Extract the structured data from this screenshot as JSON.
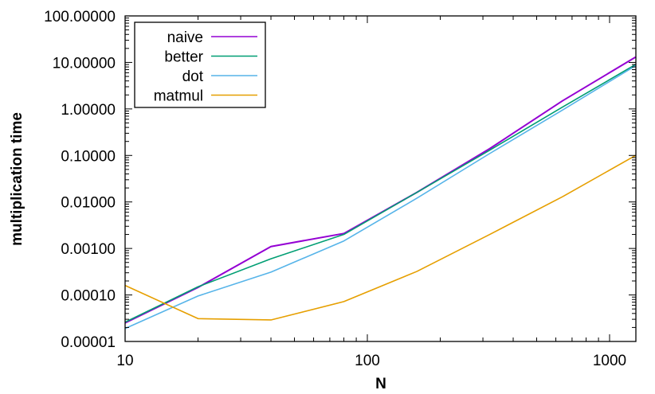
{
  "chart_data": {
    "type": "line",
    "title": "",
    "xlabel": "N",
    "ylabel": "multiplication time",
    "xscale": "log",
    "yscale": "log",
    "xlim": [
      10,
      1280
    ],
    "ylim": [
      1e-05,
      100
    ],
    "grid": false,
    "legend_position": "top-left",
    "x_ticks": [
      {
        "value": 10,
        "label": "10"
      },
      {
        "value": 100,
        "label": "100"
      },
      {
        "value": 1000,
        "label": "1000"
      }
    ],
    "y_ticks": [
      {
        "value": 1e-05,
        "label": "0.00001"
      },
      {
        "value": 0.0001,
        "label": "0.00010"
      },
      {
        "value": 0.001,
        "label": "0.00100"
      },
      {
        "value": 0.01,
        "label": "0.01000"
      },
      {
        "value": 0.1,
        "label": "0.10000"
      },
      {
        "value": 1,
        "label": "1.00000"
      },
      {
        "value": 10,
        "label": "10.00000"
      },
      {
        "value": 100,
        "label": "100.00000"
      }
    ],
    "x": [
      10,
      20,
      40,
      80,
      160,
      320,
      640,
      1280
    ],
    "series": [
      {
        "name": "naive",
        "color": "#9400d3",
        "values": [
          2.5e-05,
          0.000145,
          0.0011,
          0.0021,
          0.016,
          0.14,
          1.5,
          13.0
        ]
      },
      {
        "name": "better",
        "color": "#009e73",
        "values": [
          2.6e-05,
          0.00015,
          0.0006,
          0.002,
          0.016,
          0.13,
          1.1,
          9.0
        ]
      },
      {
        "name": "dot",
        "color": "#56b4e9",
        "values": [
          1.9e-05,
          9.5e-05,
          0.00031,
          0.00145,
          0.012,
          0.11,
          0.95,
          8.5
        ]
      },
      {
        "name": "matmul",
        "color": "#e69f00",
        "values": [
          0.00016,
          3.1e-05,
          2.9e-05,
          7.2e-05,
          0.00032,
          0.002,
          0.013,
          0.1
        ]
      }
    ]
  }
}
